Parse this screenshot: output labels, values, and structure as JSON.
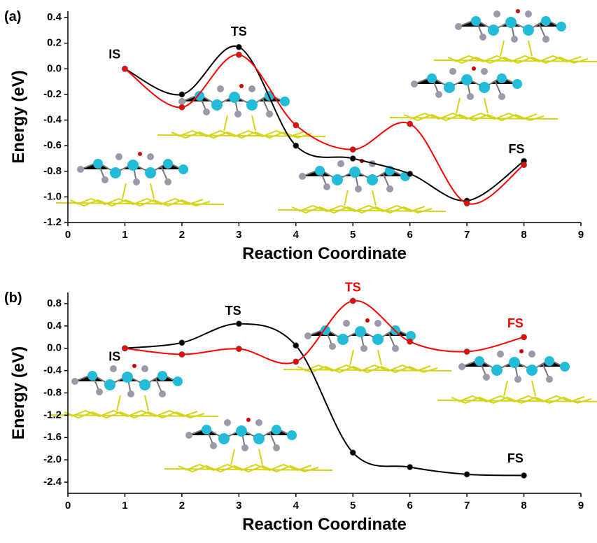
{
  "chart_data": [
    {
      "type": "line",
      "label": "(a)",
      "xlabel": "Reaction Coordinate",
      "ylabel": "Energy (eV)",
      "x": [
        1,
        2,
        3,
        4,
        5,
        6,
        7,
        8
      ],
      "series": [
        {
          "color": "#000000",
          "values": [
            0.0,
            -0.2,
            0.17,
            -0.6,
            -0.7,
            -0.82,
            -1.03,
            -0.72
          ]
        },
        {
          "color": "#ff0000",
          "values": [
            0.0,
            -0.3,
            0.11,
            -0.44,
            -0.63,
            -0.43,
            -1.05,
            -0.75
          ]
        }
      ],
      "xlim": [
        0,
        9
      ],
      "xticks": [
        0,
        1,
        2,
        3,
        4,
        5,
        6,
        7,
        8,
        9
      ],
      "ylim": [
        -1.2,
        0.45
      ],
      "yticks": [
        -1.2,
        {
          "value": -1.0,
          "label": "-1.0"
        },
        -0.8,
        -0.6,
        -0.4,
        -0.2,
        {
          "value": 0,
          "label": "0.0"
        },
        0.2,
        0.4
      ],
      "annotations": [
        {
          "text": "IS",
          "color": "#000000"
        },
        {
          "text": "TS",
          "color": "#000000"
        },
        {
          "text": "FS",
          "color": "#000000"
        }
      ]
    },
    {
      "type": "line",
      "label": "(b)",
      "xlabel": "Reaction Coordinate",
      "ylabel": "Energy (eV)",
      "x": [
        1,
        2,
        3,
        4,
        5,
        6,
        7,
        8
      ],
      "series": [
        {
          "color": "#000000",
          "values": [
            0.0,
            0.1,
            0.44,
            0.05,
            -1.87,
            -2.13,
            -2.26,
            -2.28
          ]
        },
        {
          "color": "#ff0000",
          "values": [
            0.0,
            -0.11,
            -0.01,
            -0.24,
            0.85,
            0.12,
            -0.06,
            0.2
          ]
        }
      ],
      "xlim": [
        0,
        9
      ],
      "xticks": [
        0,
        1,
        2,
        3,
        4,
        5,
        6,
        7,
        8,
        9
      ],
      "ylim": [
        -2.6,
        1.0
      ],
      "yticks": [
        -2.4,
        {
          "value": -2.0,
          "label": "-2.0"
        },
        -1.6,
        -1.2,
        -0.8,
        -0.4,
        {
          "value": 0,
          "label": "0.0"
        },
        0.4,
        0.8
      ],
      "annotations": [
        {
          "text": "IS",
          "color": "#000000"
        },
        {
          "text": "TS",
          "color": "#000000"
        },
        {
          "text": "FS",
          "color": "#000000"
        },
        {
          "text": "TS",
          "color": "#ff0000"
        },
        {
          "text": "FS",
          "color": "#ff0000"
        }
      ]
    }
  ]
}
